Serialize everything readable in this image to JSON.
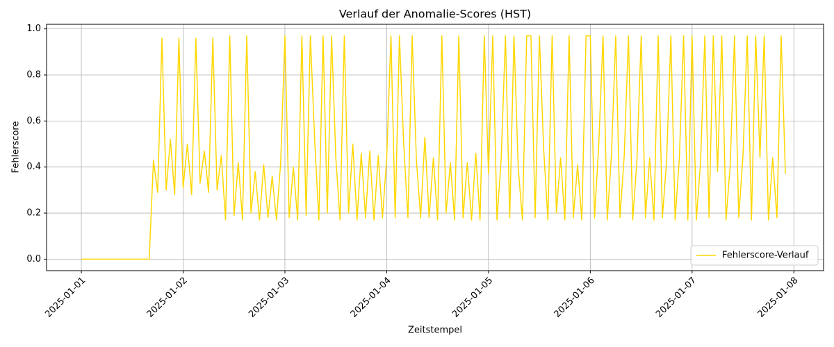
{
  "chart_data": {
    "type": "line",
    "title": "Verlauf der Anomalie-Scores (HST)",
    "xlabel": "Zeitstempel",
    "ylabel": "Fehlerscore",
    "grid": true,
    "legend": "lower right",
    "xlim": [
      "2024-12-31T15:48",
      "2025-01-08T07:00"
    ],
    "xticks": [
      "2025-01-01",
      "2025-01-02",
      "2025-01-03",
      "2025-01-04",
      "2025-01-05",
      "2025-01-06",
      "2025-01-07",
      "2025-01-08"
    ],
    "ylim": [
      -0.05,
      1.02
    ],
    "yticks": [
      {
        "value": 0,
        "label": "0.0"
      },
      0.2,
      0.4,
      0.6,
      0.8,
      {
        "value": 1,
        "label": "1.0"
      }
    ],
    "x": [
      "2025-01-01T00:00",
      "2025-01-01T01:00",
      "2025-01-01T02:00",
      "2025-01-01T03:00",
      "2025-01-01T04:00",
      "2025-01-01T05:00",
      "2025-01-01T06:00",
      "2025-01-01T07:00",
      "2025-01-01T08:00",
      "2025-01-01T09:00",
      "2025-01-01T10:00",
      "2025-01-01T11:00",
      "2025-01-01T12:00",
      "2025-01-01T13:00",
      "2025-01-01T14:00",
      "2025-01-01T15:00",
      "2025-01-01T16:00",
      "2025-01-01T17:00",
      "2025-01-01T18:00",
      "2025-01-01T19:00",
      "2025-01-01T20:00",
      "2025-01-01T21:00",
      "2025-01-01T22:00",
      "2025-01-01T23:00",
      "2025-01-02T00:00",
      "2025-01-02T01:00",
      "2025-01-02T02:00",
      "2025-01-02T03:00",
      "2025-01-02T04:00",
      "2025-01-02T05:00",
      "2025-01-02T06:00",
      "2025-01-02T07:00",
      "2025-01-02T08:00",
      "2025-01-02T09:00",
      "2025-01-02T10:00",
      "2025-01-02T11:00",
      "2025-01-02T12:00",
      "2025-01-02T13:00",
      "2025-01-02T14:00",
      "2025-01-02T15:00",
      "2025-01-02T16:00",
      "2025-01-02T17:00",
      "2025-01-02T18:00",
      "2025-01-02T19:00",
      "2025-01-02T20:00",
      "2025-01-02T21:00",
      "2025-01-02T22:00",
      "2025-01-02T23:00",
      "2025-01-03T00:00",
      "2025-01-03T01:00",
      "2025-01-03T02:00",
      "2025-01-03T03:00",
      "2025-01-03T04:00",
      "2025-01-03T05:00",
      "2025-01-03T06:00",
      "2025-01-03T07:00",
      "2025-01-03T08:00",
      "2025-01-03T09:00",
      "2025-01-03T10:00",
      "2025-01-03T11:00",
      "2025-01-03T12:00",
      "2025-01-03T13:00",
      "2025-01-03T14:00",
      "2025-01-03T15:00",
      "2025-01-03T16:00",
      "2025-01-03T17:00",
      "2025-01-03T18:00",
      "2025-01-03T19:00",
      "2025-01-03T20:00",
      "2025-01-03T21:00",
      "2025-01-03T22:00",
      "2025-01-03T23:00",
      "2025-01-04T00:00",
      "2025-01-04T01:00",
      "2025-01-04T02:00",
      "2025-01-04T03:00",
      "2025-01-04T04:00",
      "2025-01-04T05:00",
      "2025-01-04T06:00",
      "2025-01-04T07:00",
      "2025-01-04T08:00",
      "2025-01-04T09:00",
      "2025-01-04T10:00",
      "2025-01-04T11:00",
      "2025-01-04T12:00",
      "2025-01-04T13:00",
      "2025-01-04T14:00",
      "2025-01-04T15:00",
      "2025-01-04T16:00",
      "2025-01-04T17:00",
      "2025-01-04T18:00",
      "2025-01-04T19:00",
      "2025-01-04T20:00",
      "2025-01-04T21:00",
      "2025-01-04T22:00",
      "2025-01-04T23:00",
      "2025-01-05T00:00",
      "2025-01-05T01:00",
      "2025-01-05T02:00",
      "2025-01-05T03:00",
      "2025-01-05T04:00",
      "2025-01-05T05:00",
      "2025-01-05T06:00",
      "2025-01-05T07:00",
      "2025-01-05T08:00",
      "2025-01-05T09:00",
      "2025-01-05T10:00",
      "2025-01-05T11:00",
      "2025-01-05T12:00",
      "2025-01-05T13:00",
      "2025-01-05T14:00",
      "2025-01-05T15:00",
      "2025-01-05T16:00",
      "2025-01-05T17:00",
      "2025-01-05T18:00",
      "2025-01-05T19:00",
      "2025-01-05T20:00",
      "2025-01-05T21:00",
      "2025-01-05T22:00",
      "2025-01-05T23:00",
      "2025-01-06T00:00",
      "2025-01-06T01:00",
      "2025-01-06T02:00",
      "2025-01-06T03:00",
      "2025-01-06T04:00",
      "2025-01-06T05:00",
      "2025-01-06T06:00",
      "2025-01-06T07:00",
      "2025-01-06T08:00",
      "2025-01-06T09:00",
      "2025-01-06T10:00",
      "2025-01-06T11:00",
      "2025-01-06T12:00",
      "2025-01-06T13:00",
      "2025-01-06T14:00",
      "2025-01-06T15:00",
      "2025-01-06T16:00",
      "2025-01-06T17:00",
      "2025-01-06T18:00",
      "2025-01-06T19:00",
      "2025-01-06T20:00",
      "2025-01-06T21:00",
      "2025-01-06T22:00",
      "2025-01-06T23:00",
      "2025-01-07T00:00",
      "2025-01-07T01:00",
      "2025-01-07T02:00",
      "2025-01-07T03:00",
      "2025-01-07T04:00",
      "2025-01-07T05:00",
      "2025-01-07T06:00",
      "2025-01-07T07:00",
      "2025-01-07T08:00",
      "2025-01-07T09:00",
      "2025-01-07T10:00",
      "2025-01-07T11:00",
      "2025-01-07T12:00",
      "2025-01-07T13:00",
      "2025-01-07T14:00",
      "2025-01-07T15:00",
      "2025-01-07T16:00",
      "2025-01-07T17:00",
      "2025-01-07T18:00",
      "2025-01-07T19:00",
      "2025-01-07T20:00",
      "2025-01-07T21:00",
      "2025-01-07T22:00"
    ],
    "series": [
      {
        "name": "Fehlerscore-Verlauf",
        "color": "#FFD700",
        "values": [
          0,
          0,
          0,
          0,
          0,
          0,
          0,
          0,
          0,
          0,
          0,
          0,
          0,
          0,
          0,
          0,
          0,
          0.43,
          0.29,
          0.96,
          0.3,
          0.52,
          0.28,
          0.96,
          0.31,
          0.5,
          0.28,
          0.96,
          0.33,
          0.47,
          0.29,
          0.96,
          0.3,
          0.45,
          0.17,
          0.97,
          0.19,
          0.42,
          0.17,
          0.97,
          0.2,
          0.38,
          0.17,
          0.41,
          0.18,
          0.36,
          0.17,
          0.42,
          0.97,
          0.18,
          0.4,
          0.17,
          0.97,
          0.19,
          0.97,
          0.52,
          0.17,
          0.97,
          0.2,
          0.97,
          0.44,
          0.17,
          0.97,
          0.2,
          0.5,
          0.17,
          0.46,
          0.18,
          0.47,
          0.17,
          0.45,
          0.18,
          0.44,
          0.97,
          0.18,
          0.97,
          0.5,
          0.18,
          0.97,
          0.43,
          0.18,
          0.53,
          0.18,
          0.44,
          0.17,
          0.97,
          0.2,
          0.42,
          0.17,
          0.97,
          0.18,
          0.42,
          0.17,
          0.46,
          0.17,
          0.97,
          0.37,
          0.97,
          0.17,
          0.44,
          0.97,
          0.18,
          0.97,
          0.4,
          0.17,
          0.97,
          0.97,
          0.18,
          0.97,
          0.48,
          0.17,
          0.97,
          0.2,
          0.44,
          0.17,
          0.97,
          0.18,
          0.41,
          0.17,
          0.97,
          0.97,
          0.18,
          0.5,
          0.97,
          0.17,
          0.46,
          0.97,
          0.18,
          0.45,
          0.97,
          0.17,
          0.43,
          0.97,
          0.18,
          0.44,
          0.17,
          0.97,
          0.18,
          0.43,
          0.97,
          0.17,
          0.44,
          0.97,
          0.17,
          0.97,
          0.17,
          0.42,
          0.97,
          0.18,
          0.97,
          0.38,
          0.97,
          0.17,
          0.41,
          0.97,
          0.18,
          0.45,
          0.97,
          0.17,
          0.97,
          0.44,
          0.97,
          0.17,
          0.44,
          0.18,
          0.97,
          0.37
        ]
      }
    ]
  }
}
